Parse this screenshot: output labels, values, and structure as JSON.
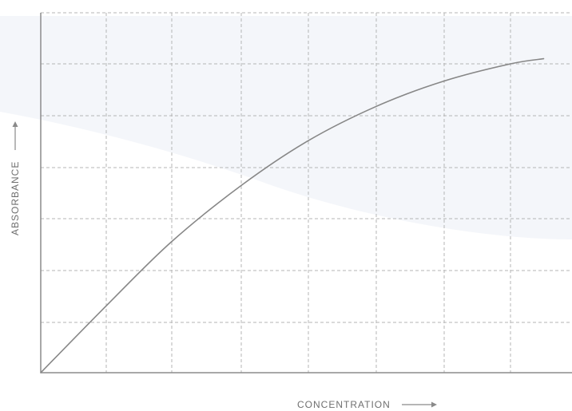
{
  "colors": {
    "background": "#ffffff",
    "tint": "#f4f6fa",
    "grid": "#b5b5b5",
    "axis": "#8c8c8c",
    "curve": "#878787",
    "label": "#6f6f6f"
  },
  "chart_data": {
    "type": "line",
    "title": "",
    "xlabel": "CONCENTRATION",
    "ylabel": "ABSORBANCE",
    "xlim": [
      0,
      8
    ],
    "ylim": [
      0,
      7
    ],
    "grid": true,
    "tick_labels_shown": false,
    "series": [
      {
        "x": [
          0,
          1,
          2,
          3,
          4,
          5,
          6,
          7,
          7.5
        ],
        "values": [
          0,
          1.32,
          2.56,
          3.65,
          4.52,
          5.18,
          5.67,
          6.0,
          6.1
        ]
      }
    ]
  }
}
